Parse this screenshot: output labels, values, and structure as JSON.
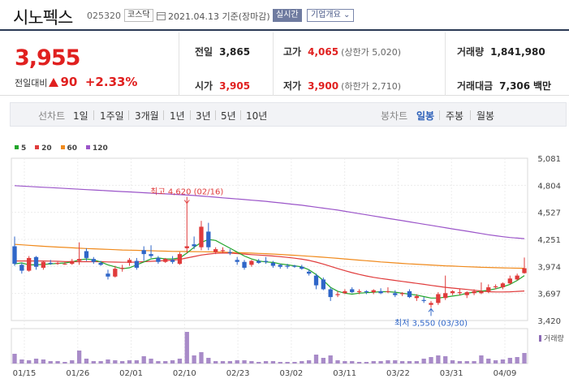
{
  "header": {
    "name": "시노펙스",
    "code": "025320",
    "market": "코스닥",
    "date": "2021.04.13",
    "basis": "기준(장마감)",
    "realtime_label": "실시간",
    "company_label": "기업개요"
  },
  "price": {
    "current": "3,955",
    "diff_label": "전일대비",
    "diff": "90",
    "rate": "+2.33%"
  },
  "stats": {
    "prev_label": "전일",
    "prev": "3,865",
    "open_label": "시가",
    "open": "3,905",
    "high_label": "고가",
    "high": "4,065",
    "upper_limit": "(상한가 5,020)",
    "low_label": "저가",
    "low": "3,900",
    "lower_limit": "(하한가 2,710)",
    "volume_label": "거래량",
    "volume": "1,841,980",
    "amount_label": "거래대금",
    "amount": "7,306",
    "amount_unit": "백만"
  },
  "tabs": {
    "line_label": "선차트",
    "line": [
      "1일",
      "1주일",
      "3개월",
      "1년",
      "3년",
      "5년",
      "10년"
    ],
    "candle_label": "봉차트",
    "candle": [
      "일봉",
      "주봉",
      "월봉"
    ],
    "candle_active": "일봉"
  },
  "legend": [
    {
      "name": "5",
      "color": "#22a52b"
    },
    {
      "name": "20",
      "color": "#e03b3b"
    },
    {
      "name": "60",
      "color": "#f08a1c"
    },
    {
      "name": "120",
      "color": "#9b55c9"
    }
  ],
  "volume_label": "거래량",
  "chart_data": {
    "type": "candlestick",
    "y_ticks": [
      "5,081",
      "4,804",
      "4,527",
      "4,251",
      "3,974",
      "3,697",
      "3,420"
    ],
    "ylim": [
      3420,
      5081
    ],
    "x_labels": [
      "01/15",
      "01/26",
      "02/01",
      "02/10",
      "02/23",
      "03/02",
      "03/11",
      "03/22",
      "03/31",
      "04/09"
    ],
    "annotations": {
      "high": "최고 4,620 (02/16)",
      "low": "최저 3,550 (03/30)"
    },
    "candles": [
      [
        4180,
        4280,
        3980,
        4000
      ],
      [
        3990,
        4010,
        3900,
        3930
      ],
      [
        3930,
        4080,
        3920,
        4060
      ],
      [
        4070,
        4080,
        3940,
        3970
      ],
      [
        3960,
        4030,
        3940,
        4020
      ],
      [
        4010,
        4040,
        3990,
        4000
      ],
      [
        4000,
        4020,
        3990,
        4010
      ],
      [
        4000,
        4020,
        3990,
        4000
      ],
      [
        4000,
        4050,
        3990,
        4030
      ],
      [
        4030,
        4220,
        3990,
        4050
      ],
      [
        4130,
        4160,
        4030,
        4060
      ],
      [
        4050,
        4070,
        4000,
        4020
      ],
      [
        4010,
        4030,
        3980,
        3990
      ],
      [
        3900,
        3940,
        3840,
        3870
      ],
      [
        3870,
        3980,
        3860,
        3950
      ],
      [
        3950,
        3990,
        3920,
        3960
      ],
      [
        4010,
        4060,
        3980,
        4040
      ],
      [
        4030,
        4060,
        3940,
        3960
      ],
      [
        4140,
        4180,
        4030,
        4100
      ],
      [
        4100,
        4190,
        4060,
        4080
      ],
      [
        4060,
        4080,
        4000,
        4020
      ],
      [
        4020,
        4060,
        4010,
        4050
      ],
      [
        4040,
        4080,
        4000,
        4020
      ],
      [
        4000,
        4120,
        3990,
        4100
      ],
      [
        4160,
        4620,
        4110,
        4180
      ],
      [
        4200,
        4280,
        4150,
        4180
      ],
      [
        4170,
        4440,
        4140,
        4380
      ],
      [
        4330,
        4420,
        4140,
        4170
      ],
      [
        4120,
        4170,
        4100,
        4150
      ],
      [
        4130,
        4170,
        4110,
        4140
      ],
      [
        4120,
        4150,
        4090,
        4110
      ],
      [
        4040,
        4070,
        3990,
        4020
      ],
      [
        4020,
        4040,
        3940,
        3960
      ],
      [
        3990,
        4040,
        3970,
        4030
      ],
      [
        4030,
        4050,
        4000,
        4010
      ],
      [
        4030,
        4070,
        4000,
        4020
      ],
      [
        4010,
        4030,
        3960,
        3980
      ],
      [
        3990,
        4000,
        3950,
        3970
      ],
      [
        3980,
        4000,
        3950,
        3970
      ],
      [
        3980,
        3990,
        3960,
        3970
      ],
      [
        3970,
        3990,
        3940,
        3950
      ],
      [
        3920,
        3940,
        3880,
        3900
      ],
      [
        3880,
        3900,
        3740,
        3780
      ],
      [
        3840,
        3860,
        3730,
        3740
      ],
      [
        3740,
        3760,
        3620,
        3660
      ],
      [
        3680,
        3720,
        3660,
        3690
      ],
      [
        3700,
        3740,
        3690,
        3720
      ],
      [
        3740,
        3760,
        3700,
        3710
      ],
      [
        3710,
        3740,
        3690,
        3720
      ],
      [
        3720,
        3730,
        3690,
        3710
      ],
      [
        3710,
        3740,
        3690,
        3730
      ],
      [
        3720,
        3750,
        3690,
        3700
      ],
      [
        3720,
        3760,
        3700,
        3720
      ],
      [
        3700,
        3730,
        3660,
        3680
      ],
      [
        3690,
        3710,
        3670,
        3700
      ],
      [
        3720,
        3740,
        3650,
        3660
      ],
      [
        3650,
        3690,
        3620,
        3670
      ],
      [
        3630,
        3660,
        3600,
        3620
      ],
      [
        3580,
        3620,
        3550,
        3600
      ],
      [
        3600,
        3710,
        3580,
        3690
      ],
      [
        3650,
        3880,
        3630,
        3700
      ],
      [
        3700,
        3730,
        3680,
        3720
      ],
      [
        3700,
        3740,
        3680,
        3710
      ],
      [
        3680,
        3720,
        3650,
        3710
      ],
      [
        3700,
        3740,
        3680,
        3720
      ],
      [
        3700,
        3810,
        3690,
        3720
      ],
      [
        3720,
        3790,
        3700,
        3760
      ],
      [
        3760,
        3790,
        3740,
        3770
      ],
      [
        3760,
        3810,
        3740,
        3800
      ],
      [
        3800,
        3880,
        3790,
        3850
      ],
      [
        3840,
        3900,
        3830,
        3880
      ],
      [
        3905,
        4065,
        3900,
        3955
      ]
    ],
    "ma5": [
      4000,
      4010,
      3990,
      3990,
      3995,
      4000,
      4005,
      4010,
      4020,
      4040,
      4050,
      4040,
      4020,
      3990,
      3970,
      3950,
      3960,
      3990,
      4020,
      4050,
      4060,
      4050,
      4050,
      4060,
      4110,
      4170,
      4220,
      4250,
      4240,
      4200,
      4160,
      4120,
      4080,
      4050,
      4030,
      4020,
      4015,
      4000,
      3990,
      3980,
      3970,
      3940,
      3890,
      3830,
      3760,
      3720,
      3700,
      3690,
      3700,
      3705,
      3710,
      3715,
      3715,
      3710,
      3700,
      3690,
      3680,
      3665,
      3650,
      3650,
      3660,
      3670,
      3680,
      3700,
      3710,
      3720,
      3730,
      3745,
      3765,
      3790,
      3830,
      3880
    ],
    "ma20": [
      4030,
      4030,
      4030,
      4030,
      4030,
      4028,
      4026,
      4024,
      4022,
      4022,
      4022,
      4022,
      4022,
      4020,
      4018,
      4016,
      4016,
      4018,
      4022,
      4026,
      4030,
      4034,
      4038,
      4045,
      4060,
      4075,
      4090,
      4100,
      4108,
      4110,
      4110,
      4105,
      4100,
      4094,
      4090,
      4085,
      4080,
      4074,
      4066,
      4058,
      4048,
      4035,
      4018,
      3998,
      3975,
      3952,
      3930,
      3910,
      3892,
      3876,
      3862,
      3850,
      3840,
      3830,
      3820,
      3810,
      3800,
      3790,
      3780,
      3770,
      3760,
      3752,
      3745,
      3738,
      3730,
      3722,
      3715,
      3712,
      3712,
      3714,
      3718,
      3722
    ],
    "ma60": [
      4200,
      4195,
      4190,
      4185,
      4180,
      4176,
      4172,
      4168,
      4164,
      4160,
      4157,
      4154,
      4151,
      4148,
      4145,
      4142,
      4140,
      4138,
      4136,
      4134,
      4132,
      4130,
      4128,
      4127,
      4126,
      4125,
      4124,
      4123,
      4122,
      4120,
      4118,
      4116,
      4113,
      4110,
      4107,
      4104,
      4100,
      4096,
      4092,
      4088,
      4083,
      4078,
      4073,
      4068,
      4062,
      4056,
      4050,
      4044,
      4038,
      4032,
      4026,
      4020,
      4015,
      4010,
      4005,
      4000,
      3996,
      3992,
      3988,
      3984,
      3980,
      3977,
      3974,
      3971,
      3968,
      3965,
      3963,
      3961,
      3959,
      3957,
      3956,
      3955
    ],
    "ma120": [
      4800,
      4796,
      4792,
      4788,
      4784,
      4780,
      4776,
      4772,
      4768,
      4764,
      4760,
      4756,
      4752,
      4748,
      4744,
      4740,
      4736,
      4732,
      4728,
      4724,
      4720,
      4716,
      4712,
      4708,
      4704,
      4700,
      4694,
      4688,
      4682,
      4676,
      4670,
      4664,
      4658,
      4652,
      4646,
      4640,
      4632,
      4624,
      4616,
      4608,
      4600,
      4590,
      4580,
      4570,
      4560,
      4550,
      4538,
      4526,
      4514,
      4502,
      4490,
      4478,
      4466,
      4454,
      4442,
      4430,
      4418,
      4406,
      4394,
      4382,
      4370,
      4358,
      4346,
      4334,
      4322,
      4310,
      4298,
      4288,
      4278,
      4270,
      4264,
      4258
    ],
    "volume": [
      1.2,
      0.5,
      0.4,
      0.6,
      0.5,
      0.3,
      0.3,
      0.2,
      0.4,
      1.6,
      0.6,
      0.3,
      0.3,
      0.5,
      0.4,
      0.3,
      0.4,
      0.4,
      0.9,
      0.6,
      0.3,
      0.3,
      0.4,
      0.6,
      3.9,
      1.0,
      1.4,
      0.7,
      0.3,
      0.3,
      0.3,
      0.4,
      0.4,
      0.3,
      0.2,
      0.3,
      0.3,
      0.2,
      0.2,
      0.2,
      0.3,
      0.4,
      1.1,
      0.7,
      1.0,
      0.4,
      0.3,
      0.3,
      0.2,
      0.2,
      0.3,
      0.3,
      0.4,
      0.4,
      0.3,
      0.3,
      0.3,
      0.6,
      0.8,
      1.0,
      0.9,
      0.4,
      0.3,
      0.3,
      0.3,
      1.0,
      0.6,
      0.4,
      0.5,
      0.7,
      0.8,
      1.3
    ]
  }
}
